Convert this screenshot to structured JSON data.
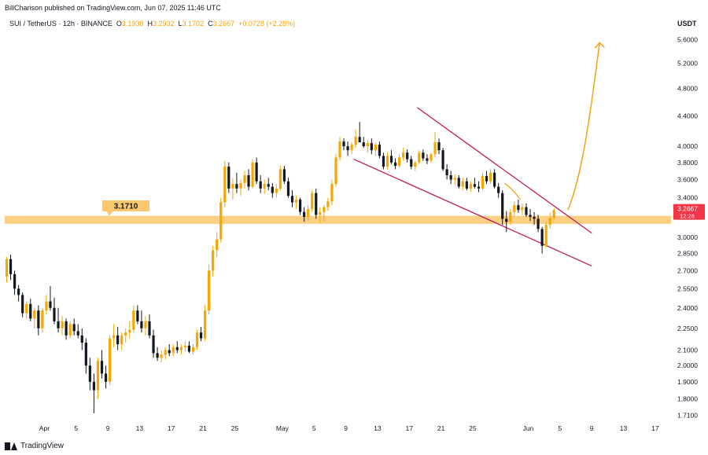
{
  "header": {
    "published": "BillCharison published on TradingView.com, Jun 07, 2025 11:46 UTC"
  },
  "symbol": {
    "name": "SUI / TetherUS · 12h · BINANCE",
    "o_label": "O",
    "o_value": "3.1938",
    "h_label": "H",
    "h_value": "3.2932",
    "l_label": "L",
    "l_value": "3.1702",
    "c_label": "C",
    "c_value": "3.2667",
    "change": "+0.0728 (+2.28%)"
  },
  "footer": {
    "brand": "TradingView"
  },
  "chart_data": {
    "type": "candlestick",
    "interval": "12h",
    "y_axis": {
      "unit": "USDT",
      "scale": "log",
      "range": [
        1.69,
        5.75
      ],
      "ticks": [
        "5.6000",
        "5.2000",
        "4.8000",
        "4.4000",
        "4.0000",
        "3.8000",
        "3.6000",
        "3.4000",
        "3.0000",
        "2.8500",
        "2.7000",
        "2.5500",
        "2.4000",
        "2.2500",
        "2.1000",
        "2.0000",
        "1.9000",
        "1.8000",
        "1.7100"
      ]
    },
    "x_axis": {
      "range": [
        "2025-03-27",
        "2025-06-19"
      ],
      "ticks": [
        {
          "date": "2025-04-01",
          "label": "Apr"
        },
        {
          "date": "2025-04-05",
          "label": "5"
        },
        {
          "date": "2025-04-09",
          "label": "9"
        },
        {
          "date": "2025-04-13",
          "label": "13"
        },
        {
          "date": "2025-04-17",
          "label": "17"
        },
        {
          "date": "2025-04-21",
          "label": "21"
        },
        {
          "date": "2025-04-25",
          "label": "25"
        },
        {
          "date": "2025-05-01",
          "label": "May"
        },
        {
          "date": "2025-05-05",
          "label": "5"
        },
        {
          "date": "2025-05-09",
          "label": "9"
        },
        {
          "date": "2025-05-13",
          "label": "13"
        },
        {
          "date": "2025-05-17",
          "label": "17"
        },
        {
          "date": "2025-05-21",
          "label": "21"
        },
        {
          "date": "2025-05-25",
          "label": "25"
        },
        {
          "date": "2025-06-01",
          "label": "Jun"
        },
        {
          "date": "2025-06-05",
          "label": "5"
        },
        {
          "date": "2025-06-09",
          "label": "9"
        },
        {
          "date": "2025-06-13",
          "label": "13"
        },
        {
          "date": "2025-06-17",
          "label": "17"
        }
      ]
    },
    "colors": {
      "up": "#f7a600",
      "down": "#131722",
      "zone": "#fcc86f",
      "wedge": "#c2185b",
      "projection": "#f5a623",
      "price_label": "#f23645"
    },
    "current_price": {
      "value": "3.2667",
      "countdown": "12:28"
    },
    "support_zone": {
      "low": 3.13,
      "high": 3.21,
      "label": "3.1710"
    },
    "wedge": {
      "upper": [
        {
          "date": "2025-05-18",
          "price": 4.52
        },
        {
          "date": "2025-06-09",
          "price": 3.04
        }
      ],
      "lower": [
        {
          "date": "2025-05-10",
          "price": 3.84
        },
        {
          "date": "2025-06-09",
          "price": 2.74
        }
      ]
    },
    "projection": [
      {
        "date": "2025-06-06",
        "price": 3.27
      },
      {
        "date": "2025-06-08",
        "price": 3.7
      },
      {
        "date": "2025-06-09",
        "price": 4.6
      },
      {
        "date": "2025-06-10",
        "price": 5.55
      }
    ],
    "projection_small": [
      {
        "date": "2025-05-29",
        "price": 3.56
      },
      {
        "date": "2025-05-30",
        "price": 3.5
      },
      {
        "date": "2025-05-31",
        "price": 3.38
      }
    ],
    "candles": [
      [
        "2025-03-27T00",
        2.65,
        2.82,
        2.6,
        2.8
      ],
      [
        "2025-03-27T12",
        2.8,
        2.84,
        2.62,
        2.67
      ],
      [
        "2025-03-28T00",
        2.67,
        2.7,
        2.5,
        2.55
      ],
      [
        "2025-03-28T12",
        2.55,
        2.58,
        2.45,
        2.5
      ],
      [
        "2025-03-29T00",
        2.5,
        2.52,
        2.33,
        2.36
      ],
      [
        "2025-03-29T12",
        2.36,
        2.45,
        2.32,
        2.43
      ],
      [
        "2025-03-30T00",
        2.43,
        2.47,
        2.3,
        2.32
      ],
      [
        "2025-03-30T12",
        2.32,
        2.4,
        2.25,
        2.38
      ],
      [
        "2025-03-31T00",
        2.38,
        2.42,
        2.2,
        2.25
      ],
      [
        "2025-03-31T12",
        2.25,
        2.4,
        2.22,
        2.38
      ],
      [
        "2025-04-01T00",
        2.38,
        2.5,
        2.35,
        2.45
      ],
      [
        "2025-04-01T12",
        2.45,
        2.57,
        2.38,
        2.4
      ],
      [
        "2025-04-02T00",
        2.4,
        2.48,
        2.28,
        2.3
      ],
      [
        "2025-04-02T12",
        2.3,
        2.4,
        2.22,
        2.25
      ],
      [
        "2025-04-03T00",
        2.25,
        2.34,
        2.2,
        2.3
      ],
      [
        "2025-04-03T12",
        2.3,
        2.32,
        2.17,
        2.2
      ],
      [
        "2025-04-04T00",
        2.2,
        2.3,
        2.18,
        2.28
      ],
      [
        "2025-04-04T12",
        2.28,
        2.32,
        2.2,
        2.23
      ],
      [
        "2025-04-05T00",
        2.23,
        2.28,
        2.18,
        2.2
      ],
      [
        "2025-04-05T12",
        2.2,
        2.25,
        2.1,
        2.15
      ],
      [
        "2025-04-06T00",
        2.15,
        2.18,
        1.95,
        2.0
      ],
      [
        "2025-04-06T12",
        2.0,
        2.05,
        1.85,
        1.9
      ],
      [
        "2025-04-07T00",
        1.9,
        1.95,
        1.72,
        1.85
      ],
      [
        "2025-04-07T12",
        1.85,
        2.05,
        1.8,
        2.03
      ],
      [
        "2025-04-08T00",
        2.03,
        2.1,
        1.92,
        1.95
      ],
      [
        "2025-04-08T12",
        1.95,
        2.0,
        1.86,
        1.9
      ],
      [
        "2025-04-09T00",
        1.9,
        2.2,
        1.88,
        2.18
      ],
      [
        "2025-04-09T12",
        2.18,
        2.28,
        2.12,
        2.2
      ],
      [
        "2025-04-10T00",
        2.2,
        2.26,
        2.1,
        2.14
      ],
      [
        "2025-04-10T12",
        2.14,
        2.22,
        2.1,
        2.2
      ],
      [
        "2025-04-11T00",
        2.2,
        2.25,
        2.15,
        2.22
      ],
      [
        "2025-04-11T12",
        2.22,
        2.3,
        2.18,
        2.24
      ],
      [
        "2025-04-12T00",
        2.24,
        2.42,
        2.22,
        2.38
      ],
      [
        "2025-04-12T12",
        2.38,
        2.42,
        2.28,
        2.3
      ],
      [
        "2025-04-13T00",
        2.3,
        2.38,
        2.22,
        2.25
      ],
      [
        "2025-04-13T12",
        2.25,
        2.34,
        2.2,
        2.3
      ],
      [
        "2025-04-14T00",
        2.3,
        2.35,
        2.18,
        2.2
      ],
      [
        "2025-04-14T12",
        2.2,
        2.24,
        2.05,
        2.08
      ],
      [
        "2025-04-15T00",
        2.08,
        2.12,
        2.03,
        2.05
      ],
      [
        "2025-04-15T12",
        2.05,
        2.1,
        2.02,
        2.07
      ],
      [
        "2025-04-16T00",
        2.07,
        2.12,
        2.04,
        2.1
      ],
      [
        "2025-04-16T12",
        2.1,
        2.14,
        2.06,
        2.08
      ],
      [
        "2025-04-17T00",
        2.08,
        2.14,
        2.06,
        2.12
      ],
      [
        "2025-04-17T12",
        2.12,
        2.16,
        2.08,
        2.1
      ],
      [
        "2025-04-18T00",
        2.1,
        2.14,
        2.07,
        2.12
      ],
      [
        "2025-04-18T12",
        2.12,
        2.16,
        2.09,
        2.13
      ],
      [
        "2025-04-19T00",
        2.13,
        2.16,
        2.08,
        2.09
      ],
      [
        "2025-04-19T12",
        2.09,
        2.14,
        2.07,
        2.12
      ],
      [
        "2025-04-20T00",
        2.12,
        2.24,
        2.1,
        2.22
      ],
      [
        "2025-04-20T12",
        2.22,
        2.26,
        2.16,
        2.18
      ],
      [
        "2025-04-21T00",
        2.18,
        2.42,
        2.16,
        2.38
      ],
      [
        "2025-04-21T12",
        2.38,
        2.75,
        2.35,
        2.7
      ],
      [
        "2025-04-22T00",
        2.7,
        2.92,
        2.65,
        2.88
      ],
      [
        "2025-04-22T12",
        2.88,
        3.05,
        2.82,
        2.98
      ],
      [
        "2025-04-23T00",
        2.98,
        3.4,
        2.95,
        3.35
      ],
      [
        "2025-04-23T12",
        3.35,
        3.82,
        3.3,
        3.75
      ],
      [
        "2025-04-24T00",
        3.75,
        3.8,
        3.45,
        3.5
      ],
      [
        "2025-04-24T12",
        3.5,
        3.62,
        3.38,
        3.55
      ],
      [
        "2025-04-25T00",
        3.55,
        3.68,
        3.45,
        3.5
      ],
      [
        "2025-04-25T12",
        3.5,
        3.6,
        3.42,
        3.56
      ],
      [
        "2025-04-26T00",
        3.56,
        3.7,
        3.5,
        3.65
      ],
      [
        "2025-04-26T12",
        3.65,
        3.72,
        3.48,
        3.52
      ],
      [
        "2025-04-27T00",
        3.52,
        3.84,
        3.5,
        3.8
      ],
      [
        "2025-04-27T12",
        3.8,
        3.86,
        3.55,
        3.58
      ],
      [
        "2025-04-28T00",
        3.58,
        3.65,
        3.45,
        3.5
      ],
      [
        "2025-04-28T12",
        3.5,
        3.6,
        3.44,
        3.55
      ],
      [
        "2025-04-29T00",
        3.55,
        3.62,
        3.48,
        3.52
      ],
      [
        "2025-04-29T12",
        3.52,
        3.56,
        3.4,
        3.45
      ],
      [
        "2025-04-30T00",
        3.45,
        3.55,
        3.4,
        3.5
      ],
      [
        "2025-04-30T12",
        3.5,
        3.76,
        3.48,
        3.72
      ],
      [
        "2025-05-01T00",
        3.72,
        3.76,
        3.55,
        3.58
      ],
      [
        "2025-05-01T12",
        3.58,
        3.62,
        3.4,
        3.42
      ],
      [
        "2025-05-02T00",
        3.42,
        3.48,
        3.3,
        3.35
      ],
      [
        "2025-05-02T12",
        3.35,
        3.42,
        3.28,
        3.38
      ],
      [
        "2025-05-03T00",
        3.38,
        3.4,
        3.22,
        3.25
      ],
      [
        "2025-05-03T12",
        3.25,
        3.3,
        3.15,
        3.2
      ],
      [
        "2025-05-04T00",
        3.2,
        3.32,
        3.16,
        3.28
      ],
      [
        "2025-05-04T12",
        3.28,
        3.48,
        3.25,
        3.45
      ],
      [
        "2025-05-05T00",
        3.45,
        3.5,
        3.18,
        3.22
      ],
      [
        "2025-05-05T12",
        3.22,
        3.3,
        3.14,
        3.25
      ],
      [
        "2025-05-06T00",
        3.25,
        3.32,
        3.15,
        3.3
      ],
      [
        "2025-05-06T12",
        3.3,
        3.4,
        3.26,
        3.36
      ],
      [
        "2025-05-07T00",
        3.36,
        3.6,
        3.32,
        3.55
      ],
      [
        "2025-05-07T12",
        3.55,
        3.9,
        3.52,
        3.86
      ],
      [
        "2025-05-08T00",
        3.86,
        4.12,
        3.82,
        4.06
      ],
      [
        "2025-05-08T12",
        4.06,
        4.1,
        3.95,
        4.0
      ],
      [
        "2025-05-09T00",
        4.0,
        4.06,
        3.88,
        3.95
      ],
      [
        "2025-05-09T12",
        3.95,
        4.05,
        3.9,
        4.02
      ],
      [
        "2025-05-10T00",
        4.02,
        4.22,
        3.98,
        4.12
      ],
      [
        "2025-05-10T12",
        4.12,
        4.32,
        4.05,
        4.05
      ],
      [
        "2025-05-11T00",
        4.05,
        4.12,
        3.98,
        4.0
      ],
      [
        "2025-05-11T12",
        4.0,
        4.08,
        3.92,
        4.04
      ],
      [
        "2025-05-12T00",
        4.04,
        4.1,
        3.9,
        3.95
      ],
      [
        "2025-05-12T12",
        3.95,
        4.05,
        3.88,
        4.02
      ],
      [
        "2025-05-13T00",
        4.02,
        4.06,
        3.85,
        3.88
      ],
      [
        "2025-05-13T12",
        3.88,
        3.92,
        3.72,
        3.75
      ],
      [
        "2025-05-14T00",
        3.75,
        3.92,
        3.72,
        3.88
      ],
      [
        "2025-05-14T12",
        3.88,
        3.95,
        3.78,
        3.8
      ],
      [
        "2025-05-15T00",
        3.8,
        3.85,
        3.72,
        3.76
      ],
      [
        "2025-05-15T12",
        3.76,
        3.9,
        3.74,
        3.86
      ],
      [
        "2025-05-16T00",
        3.86,
        3.98,
        3.82,
        3.92
      ],
      [
        "2025-05-16T12",
        3.92,
        3.96,
        3.8,
        3.84
      ],
      [
        "2025-05-17T00",
        3.84,
        3.88,
        3.72,
        3.75
      ],
      [
        "2025-05-17T12",
        3.75,
        3.82,
        3.7,
        3.8
      ],
      [
        "2025-05-18T00",
        3.8,
        3.95,
        3.78,
        3.92
      ],
      [
        "2025-05-18T12",
        3.92,
        3.96,
        3.82,
        3.85
      ],
      [
        "2025-05-19T00",
        3.85,
        3.9,
        3.78,
        3.82
      ],
      [
        "2025-05-19T12",
        3.82,
        3.92,
        3.8,
        3.9
      ],
      [
        "2025-05-20T00",
        3.9,
        4.18,
        3.86,
        4.05
      ],
      [
        "2025-05-20T12",
        4.05,
        4.1,
        3.9,
        3.95
      ],
      [
        "2025-05-21T00",
        3.95,
        3.98,
        3.7,
        3.72
      ],
      [
        "2025-05-21T12",
        3.72,
        3.78,
        3.6,
        3.65
      ],
      [
        "2025-05-22T00",
        3.65,
        3.7,
        3.55,
        3.6
      ],
      [
        "2025-05-22T12",
        3.6,
        3.66,
        3.54,
        3.62
      ],
      [
        "2025-05-23T00",
        3.62,
        3.65,
        3.5,
        3.52
      ],
      [
        "2025-05-23T12",
        3.52,
        3.62,
        3.48,
        3.58
      ],
      [
        "2025-05-24T00",
        3.58,
        3.62,
        3.48,
        3.5
      ],
      [
        "2025-05-24T12",
        3.5,
        3.58,
        3.46,
        3.55
      ],
      [
        "2025-05-25T00",
        3.55,
        3.62,
        3.5,
        3.52
      ],
      [
        "2025-05-25T12",
        3.52,
        3.58,
        3.46,
        3.5
      ],
      [
        "2025-05-26T00",
        3.5,
        3.68,
        3.48,
        3.64
      ],
      [
        "2025-05-26T12",
        3.64,
        3.7,
        3.55,
        3.58
      ],
      [
        "2025-05-27T00",
        3.58,
        3.72,
        3.55,
        3.68
      ],
      [
        "2025-05-27T12",
        3.68,
        3.72,
        3.5,
        3.52
      ],
      [
        "2025-05-28T00",
        3.52,
        3.56,
        3.4,
        3.45
      ],
      [
        "2025-05-28T12",
        3.45,
        3.48,
        3.12,
        3.18
      ],
      [
        "2025-05-29T00",
        3.18,
        3.26,
        3.05,
        3.15
      ],
      [
        "2025-05-29T12",
        3.15,
        3.28,
        3.12,
        3.25
      ],
      [
        "2025-05-30T00",
        3.25,
        3.36,
        3.2,
        3.32
      ],
      [
        "2025-05-30T12",
        3.32,
        3.38,
        3.24,
        3.27
      ],
      [
        "2025-05-31T00",
        3.27,
        3.34,
        3.22,
        3.3
      ],
      [
        "2025-05-31T12",
        3.3,
        3.34,
        3.2,
        3.22
      ],
      [
        "2025-06-01T00",
        3.22,
        3.28,
        3.16,
        3.2
      ],
      [
        "2025-06-01T12",
        3.2,
        3.25,
        3.12,
        3.18
      ],
      [
        "2025-06-02T00",
        3.18,
        3.22,
        3.05,
        3.08
      ],
      [
        "2025-06-02T12",
        3.08,
        3.1,
        2.85,
        2.92
      ],
      [
        "2025-06-03T00",
        2.92,
        3.15,
        2.9,
        3.12
      ],
      [
        "2025-06-03T12",
        3.12,
        3.24,
        3.08,
        3.19
      ],
      [
        "2025-06-04T00",
        3.19,
        3.29,
        3.17,
        3.27
      ]
    ]
  }
}
